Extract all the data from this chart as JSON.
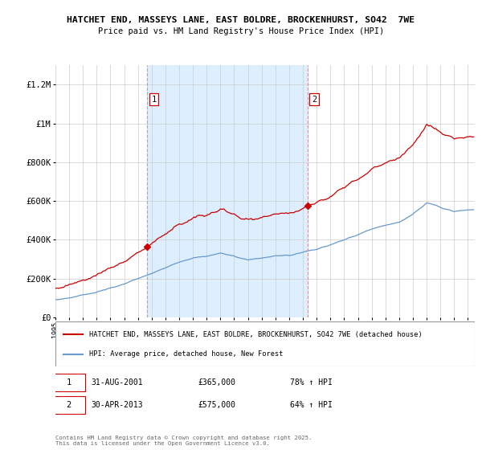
{
  "title1": "HATCHET END, MASSEYS LANE, EAST BOLDRE, BROCKENHURST, SO42  7WE",
  "title2": "Price paid vs. HM Land Registry's House Price Index (HPI)",
  "legend_line1": "HATCHET END, MASSEYS LANE, EAST BOLDRE, BROCKENHURST, SO42 7WE (detached house)",
  "legend_line2": "HPI: Average price, detached house, New Forest",
  "footer": "Contains HM Land Registry data © Crown copyright and database right 2025.\nThis data is licensed under the Open Government Licence v3.0.",
  "annotation1_label": "1",
  "annotation1_date": "31-AUG-2001",
  "annotation1_price": "£365,000",
  "annotation1_hpi": "78% ↑ HPI",
  "annotation2_label": "2",
  "annotation2_date": "30-APR-2013",
  "annotation2_price": "£575,000",
  "annotation2_hpi": "64% ↑ HPI",
  "purchase1_x": 2001.667,
  "purchase1_y": 365000,
  "purchase2_x": 2013.333,
  "purchase2_y": 575000,
  "shaded_start": 2001.667,
  "shaded_end": 2013.333,
  "red_line_color": "#cc0000",
  "blue_line_color": "#6699cc",
  "shade_color": "#ddeeff",
  "background_color": "#ffffff",
  "grid_color": "#cccccc",
  "ylim": [
    0,
    1300000
  ],
  "xlim_start": 1995.0,
  "xlim_end": 2025.5,
  "yticks": [
    0,
    200000,
    400000,
    600000,
    800000,
    1000000,
    1200000
  ],
  "ytick_labels": [
    "£0",
    "£200K",
    "£400K",
    "£600K",
    "£800K",
    "£1M",
    "£1.2M"
  ]
}
